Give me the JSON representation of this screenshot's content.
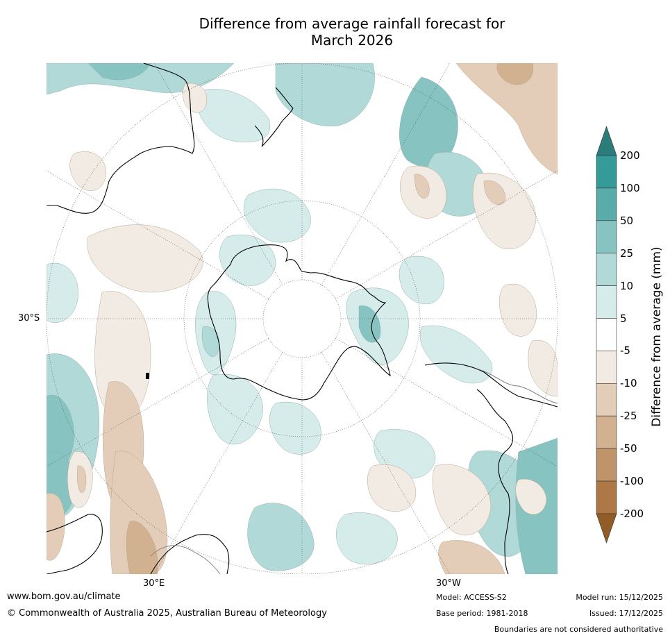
{
  "title": {
    "line1": "Difference from average rainfall forecast for",
    "line2": "March 2026"
  },
  "map": {
    "projection": "south polar stereographic",
    "lat_label": "30°S",
    "lon_labels": {
      "east": "30°E",
      "west": "30°W"
    },
    "landmasses": [
      "Antarctica",
      "Australia",
      "New Zealand",
      "South America",
      "Africa"
    ]
  },
  "colorbar": {
    "title": "Difference from average (mm)",
    "ticks": [
      "200",
      "100",
      "50",
      "25",
      "10",
      "5",
      "-5",
      "-10",
      "-25",
      "-50",
      "-100",
      "-200"
    ],
    "colors": [
      "#2a7d7b",
      "#359b98",
      "#5aacab",
      "#86c3c1",
      "#b1d9d7",
      "#d6eceb",
      "#ffffff",
      "#f2ebe3",
      "#e3cdb8",
      "#d2b190",
      "#c0946b",
      "#ad7845",
      "#925c27"
    ]
  },
  "footer": {
    "url": "www.bom.gov.au/climate",
    "copyright": "© Commonwealth of Australia 2025, Australian Bureau of Meteorology",
    "model": "Model: ACCESS-S2",
    "base_period": "Base period: 1981-2018",
    "model_run": "Model run: 15/12/2025",
    "issued": "Issued: 17/12/2025",
    "disclaimer": "Boundaries are not considered authoritative"
  }
}
